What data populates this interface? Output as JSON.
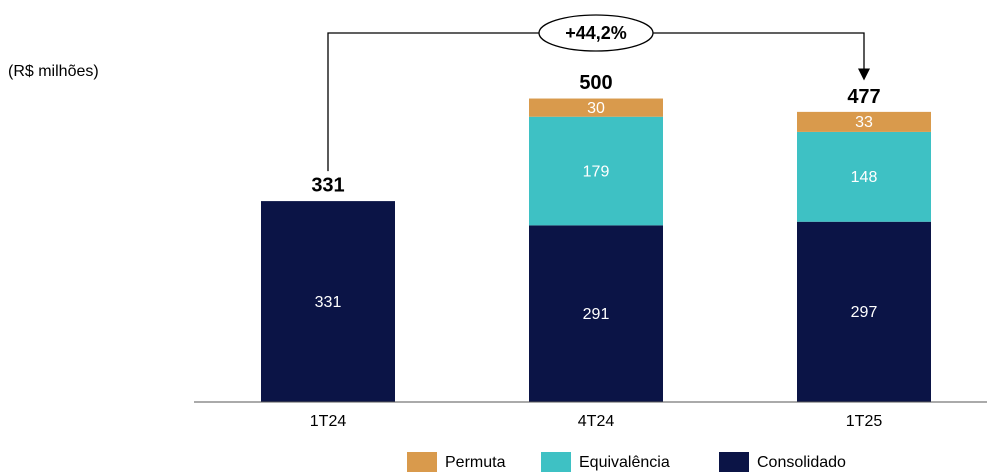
{
  "chart_data": {
    "type": "stacked_bar",
    "subtitle": "(R$ milhões)",
    "annotation": "+44,2%",
    "categories": [
      "1T24",
      "4T24",
      "1T25"
    ],
    "series": [
      {
        "name": "Permuta",
        "color": "#d99a4c",
        "values": [
          null,
          30,
          33
        ]
      },
      {
        "name": "Equivalência",
        "color": "#3ec1c4",
        "values": [
          null,
          179,
          148
        ]
      },
      {
        "name": "Consolidado",
        "color": "#0b1446",
        "values": [
          331,
          291,
          297
        ]
      }
    ],
    "totals": [
      331,
      500,
      477
    ],
    "ylim": [
      0,
      547
    ]
  }
}
